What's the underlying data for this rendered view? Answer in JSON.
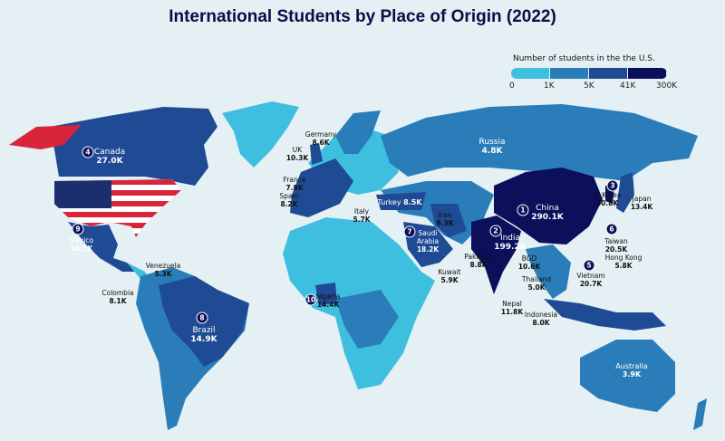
{
  "title": "International Students by Place of Origin (2022)",
  "legend": {
    "title": "Number of students in the the U.S.",
    "ticks": [
      "0",
      "1K",
      "5K",
      "41K",
      "300K"
    ],
    "colors": [
      "#3fbfdf",
      "#2a7db8",
      "#1f4a94",
      "#0c0f5a"
    ]
  },
  "colors": {
    "background": "#e4f0f4",
    "tier1": "#3fbfdf",
    "tier2": "#2a7db8",
    "tier3": "#1f4a94",
    "tier4": "#0c0f5a",
    "usa_red": "#d8253a",
    "usa_blue": "#1b2f6e"
  },
  "countries": [
    {
      "name": "China",
      "value": "290.1K",
      "rank": "1"
    },
    {
      "name": "India",
      "value": "199.2K",
      "rank": "2"
    },
    {
      "name": "S. Korea",
      "value": "40.8K",
      "rank": "3"
    },
    {
      "name": "Canada",
      "value": "27.0K",
      "rank": "4"
    },
    {
      "name": "Vietnam",
      "value": "20.7K",
      "rank": "5"
    },
    {
      "name": "Taiwan",
      "value": "20.5K",
      "rank": "6"
    },
    {
      "name": "Saudi Arabia",
      "value": "18.2K",
      "rank": "7"
    },
    {
      "name": "Brazil",
      "value": "14.9K",
      "rank": "8"
    },
    {
      "name": "Mexico",
      "value": "14.5K",
      "rank": "9"
    },
    {
      "name": "Nigeria",
      "value": "14.4K",
      "rank": "10"
    },
    {
      "name": "Japan",
      "value": "13.4K"
    },
    {
      "name": "Nepal",
      "value": "11.8K"
    },
    {
      "name": "BGD",
      "value": "10.6K"
    },
    {
      "name": "UK",
      "value": "10.3K"
    },
    {
      "name": "Iran",
      "value": "9.3K"
    },
    {
      "name": "Germany",
      "value": "8.6K"
    },
    {
      "name": "Turkey",
      "value": "8.5K"
    },
    {
      "name": "Pakistan",
      "value": "8.8K"
    },
    {
      "name": "Spain",
      "value": "8.2K"
    },
    {
      "name": "Colombia",
      "value": "8.1K"
    },
    {
      "name": "Indonesia",
      "value": "8.0K"
    },
    {
      "name": "France",
      "value": "7.8K"
    },
    {
      "name": "Kuwait",
      "value": "5.9K"
    },
    {
      "name": "Hong Kong",
      "value": "5.8K"
    },
    {
      "name": "Italy",
      "value": "5.7K"
    },
    {
      "name": "Venezuela",
      "value": "5.3K"
    },
    {
      "name": "Thailand",
      "value": "5.0K"
    },
    {
      "name": "Russia",
      "value": "4.8K"
    },
    {
      "name": "Australia",
      "value": "3.9K"
    }
  ]
}
